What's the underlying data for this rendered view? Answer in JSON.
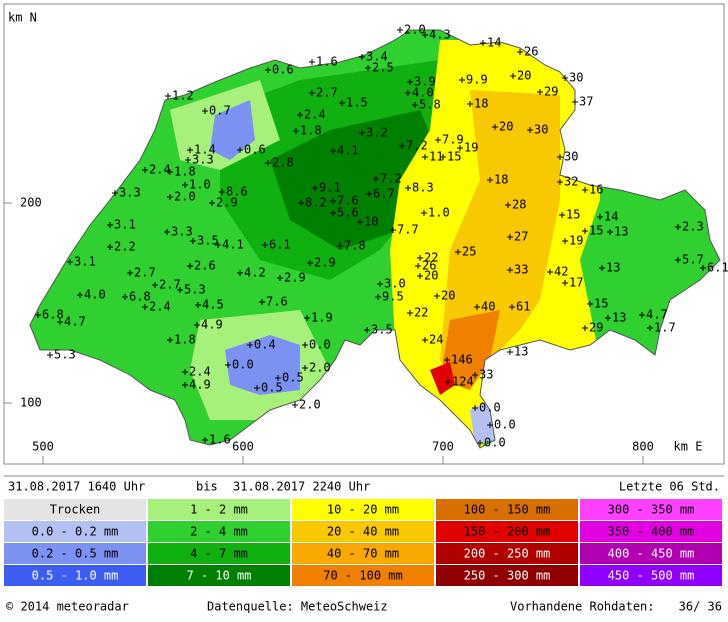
{
  "header": {
    "period_start": "31.08.2017 1640 Uhr",
    "between": "bis",
    "period_end": "31.08.2017 2240 Uhr",
    "window": "Letzte 06 Std."
  },
  "axes": {
    "y_unit": "km N",
    "y_ticks": [
      200,
      100
    ],
    "x_ticks": [
      500,
      600,
      700,
      800
    ],
    "x_unit": "km E"
  },
  "stations": [
    "2.0",
    "4.3",
    "14",
    "26",
    "3.4",
    "2.5",
    "1.6",
    "0.6",
    "9.9",
    "20",
    "30",
    "3.9",
    "29",
    "37",
    "2.7",
    "4.0",
    "1.2",
    "1.5",
    "5.8",
    "18",
    "0.7",
    "2.4",
    "20",
    "30",
    "1.8",
    "3.2",
    "7.2",
    "7.9",
    "1.4",
    "0.6",
    "4.1",
    "19",
    "11",
    "15",
    "30",
    "3.3",
    "2.8",
    "2.4",
    "1.8",
    "7.2",
    "18",
    "32",
    "1.0",
    "8.6",
    "9.1",
    "8.3",
    "16",
    "3.3",
    "2.0",
    "6.7",
    "2.9",
    "8.2",
    "7.6",
    "28",
    "1.0",
    "5.6",
    "15",
    "14",
    "3.1",
    "10",
    "7.7",
    "15",
    "13",
    "2.3",
    "3.3",
    "27",
    "19",
    "3.5",
    "4.1",
    "6.1",
    "7.8",
    "2.2",
    "25",
    "22",
    "26",
    "5.7",
    "6.1",
    "3.1",
    "2.6",
    "2.9",
    "13",
    "20",
    "33",
    "42",
    "2.7",
    "4.2",
    "2.9",
    "17",
    "3.0",
    "4.0",
    "6.8",
    "2.7",
    "5.3",
    "20",
    "9.5",
    "4.5",
    "7.6",
    "2.4",
    "40",
    "61",
    "15",
    "6.8",
    "4.7",
    "22",
    "1.9",
    "13",
    "4.7",
    "4.9",
    "29",
    "1.7",
    "3.5",
    "24",
    "1.8",
    "0.4",
    "0.0",
    "5.3",
    "13",
    "146",
    "0.0",
    "2.0",
    "2.4",
    "33",
    "124",
    "0.5",
    "0.5",
    "4.9",
    "0.0",
    "2.0",
    "0.0",
    "1.6",
    "0.0"
  ],
  "legend": [
    {
      "label": "Trocken",
      "color": "#e4e4e4"
    },
    {
      "label": "0.0 - 0.2 mm",
      "color": "#b4c0f2"
    },
    {
      "label": "0.2 - 0.5 mm",
      "color": "#7c92f2"
    },
    {
      "label": "0.5 - 1.0 mm",
      "color": "#3c5cf2"
    },
    {
      "label": "1 - 2 mm",
      "color": "#a8f07c"
    },
    {
      "label": "2 - 4 mm",
      "color": "#30d030"
    },
    {
      "label": "4 - 7 mm",
      "color": "#10b010"
    },
    {
      "label": "7 - 10 mm",
      "color": "#008000"
    },
    {
      "label": "10 - 20 mm",
      "color": "#ffff00"
    },
    {
      "label": "20 - 40 mm",
      "color": "#f8c800"
    },
    {
      "label": "40 - 70 mm",
      "color": "#f8a800"
    },
    {
      "label": "70 - 100 mm",
      "color": "#f08000"
    },
    {
      "label": "100 - 150 mm",
      "color": "#d87000"
    },
    {
      "label": "150 - 200 mm",
      "color": "#e00000"
    },
    {
      "label": "200 - 250 mm",
      "color": "#b00000"
    },
    {
      "label": "250 - 300 mm",
      "color": "#900000"
    },
    {
      "label": "300 - 350 mm",
      "color": "#ff40ff"
    },
    {
      "label": "350 - 400 mm",
      "color": "#e000e0"
    },
    {
      "label": "400 - 450 mm",
      "color": "#b000b0"
    },
    {
      "label": "450 - 500 mm",
      "color": "#9000ff"
    }
  ],
  "footer": {
    "copyright": "© 2014 meteoradar",
    "source": "Datenquelle: MeteoSchweiz",
    "raw_label": "Vorhandene Rohdaten:",
    "raw_value": "36/ 36"
  }
}
